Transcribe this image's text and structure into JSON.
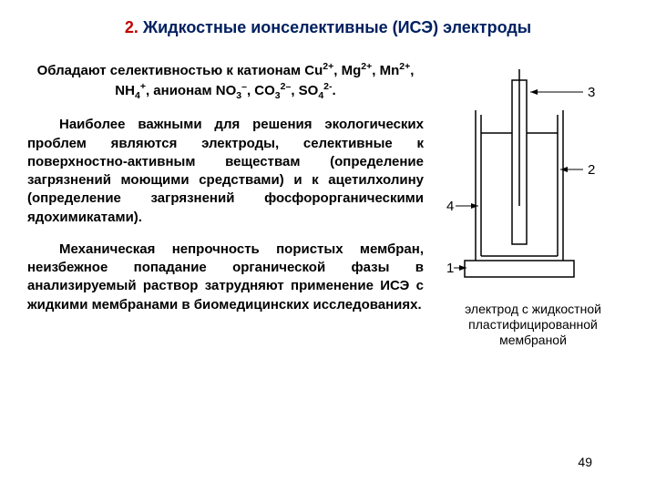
{
  "title": {
    "number": "2.",
    "text": "Жидкостные ионселективные (ИСЭ) электроды"
  },
  "paragraphs": {
    "p1_html": "Обладают селективностью к катионам Cu<sup>2+</sup>, Mg<sup>2+</sup>, Mn<sup>2+</sup>, NH<sub>4</sub><sup>+</sup>, анионам NO<sub>3</sub><sup>–</sup>, CO<sub>3</sub><sup>2–</sup>, SO<sub>4</sub><sup>2-</sup>.",
    "p2": "Наиболее важными для решения экологических проблем являются электроды, селективные к поверхностно-активным веществам (определение загрязнений моющими средствами) и к ацетилхолину (определение загрязнений фосфорорганическими ядохимикатами).",
    "p3": "Механическая непрочность пористых мембран, неизбежное попадание органической фазы в анализируемый раствор затрудняют применение ИСЭ с жидкими мембранами в биомедицинских исследованиях."
  },
  "figure": {
    "caption_line1": "электрод с жидкостной",
    "caption_line2": "пластифицированной",
    "caption_line3": "мембраной",
    "labels": {
      "l1": "1",
      "l2": "2",
      "l3": "3",
      "l4": "4"
    },
    "stroke_color": "#000000",
    "stroke_width": 1.5
  },
  "page_number": "49",
  "colors": {
    "title_number": "#c00000",
    "title_text": "#002060",
    "body_text": "#000000",
    "background": "#ffffff"
  }
}
